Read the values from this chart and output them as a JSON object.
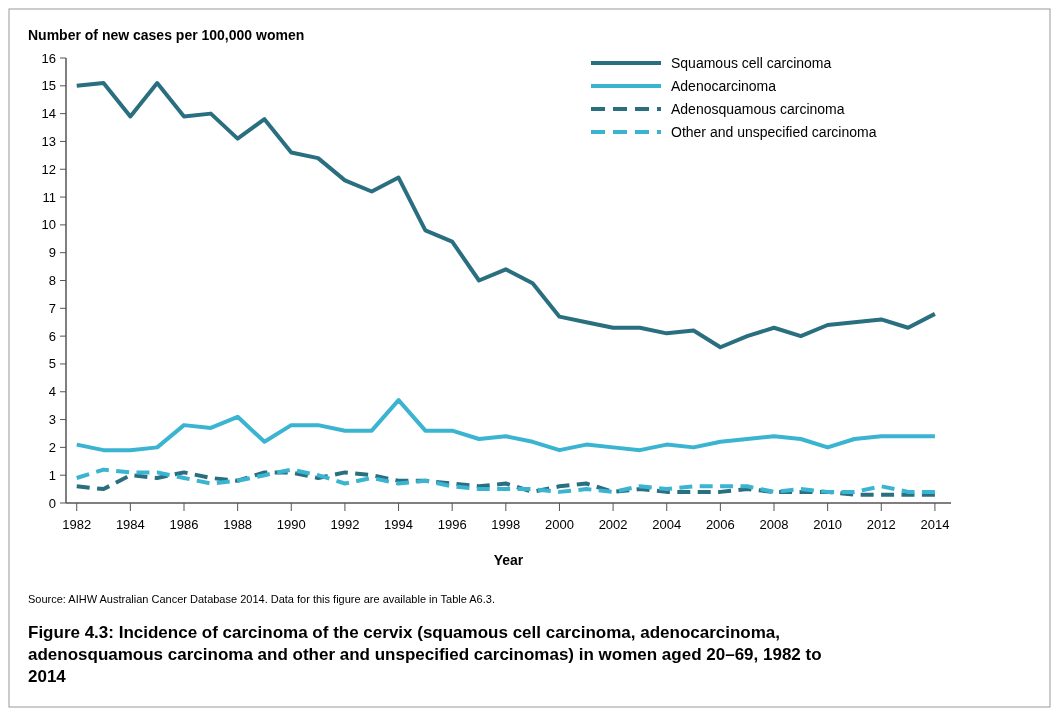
{
  "chart_data": {
    "type": "line",
    "title": "Figure 4.3: Incidence of carcinoma of the cervix (squamous cell carcinoma, adenocarcinoma, adenosquamous carcinoma and other and unspecified carcinomas) in women aged 20–69, 1982 to 2014",
    "ylabel": "Number of new cases per 100,000 women",
    "xlabel": "Year",
    "annotations": [
      "Source: AIHW Australian Cancer Database 2014. Data for this figure are available in Table A6.3."
    ],
    "x": [
      1982,
      1983,
      1984,
      1985,
      1986,
      1987,
      1988,
      1989,
      1990,
      1991,
      1992,
      1993,
      1994,
      1995,
      1996,
      1997,
      1998,
      1999,
      2000,
      2001,
      2002,
      2003,
      2004,
      2005,
      2006,
      2007,
      2008,
      2009,
      2010,
      2011,
      2012,
      2013,
      2014
    ],
    "xlim": [
      1981.6,
      2014.6
    ],
    "xticks": [
      1982,
      1984,
      1986,
      1988,
      1990,
      1992,
      1994,
      1996,
      1998,
      2000,
      2002,
      2004,
      2006,
      2008,
      2010,
      2012,
      2014
    ],
    "ylim": [
      0,
      16
    ],
    "yticks": [
      0,
      1,
      2,
      3,
      4,
      5,
      6,
      7,
      8,
      9,
      10,
      11,
      12,
      13,
      14,
      15,
      16
    ],
    "legend": "top right",
    "grid": false,
    "series": [
      {
        "name": "Squamous cell carcinoma",
        "color": "#2a6f80",
        "line_style": "solid",
        "values": [
          15.0,
          15.1,
          13.9,
          15.1,
          13.9,
          14.0,
          13.1,
          13.8,
          12.6,
          12.4,
          11.6,
          11.2,
          11.7,
          9.8,
          9.4,
          8.0,
          8.4,
          7.9,
          6.7,
          6.5,
          6.3,
          6.3,
          6.1,
          6.2,
          5.6,
          6.0,
          6.3,
          6.0,
          6.4,
          6.5,
          6.6,
          6.3,
          6.8
        ]
      },
      {
        "name": "Adenocarcinoma",
        "color": "#3ab4d0",
        "line_style": "solid",
        "values": [
          2.1,
          1.9,
          1.9,
          2.0,
          2.8,
          2.7,
          3.1,
          2.2,
          2.8,
          2.8,
          2.6,
          2.6,
          3.7,
          2.6,
          2.6,
          2.3,
          2.4,
          2.2,
          1.9,
          2.1,
          2.0,
          1.9,
          2.1,
          2.0,
          2.2,
          2.3,
          2.4,
          2.3,
          2.0,
          2.3,
          2.4,
          2.4,
          2.4
        ]
      },
      {
        "name": "Adenosquamous carcinoma",
        "color": "#2a6f80",
        "line_style": "dashed",
        "values": [
          0.6,
          0.5,
          1.0,
          0.9,
          1.1,
          0.9,
          0.8,
          1.1,
          1.1,
          0.9,
          1.1,
          1.0,
          0.8,
          0.8,
          0.7,
          0.6,
          0.7,
          0.4,
          0.6,
          0.7,
          0.4,
          0.5,
          0.4,
          0.4,
          0.4,
          0.5,
          0.4,
          0.4,
          0.4,
          0.3,
          0.3,
          0.3,
          0.3
        ]
      },
      {
        "name": "Other and unspecified carcinoma",
        "color": "#3ab4d0",
        "line_style": "dashed",
        "values": [
          0.9,
          1.2,
          1.1,
          1.1,
          0.9,
          0.7,
          0.8,
          1.0,
          1.2,
          1.0,
          0.7,
          0.9,
          0.7,
          0.8,
          0.6,
          0.5,
          0.5,
          0.5,
          0.4,
          0.5,
          0.4,
          0.6,
          0.5,
          0.6,
          0.6,
          0.6,
          0.4,
          0.5,
          0.4,
          0.4,
          0.6,
          0.4,
          0.4
        ]
      }
    ]
  }
}
